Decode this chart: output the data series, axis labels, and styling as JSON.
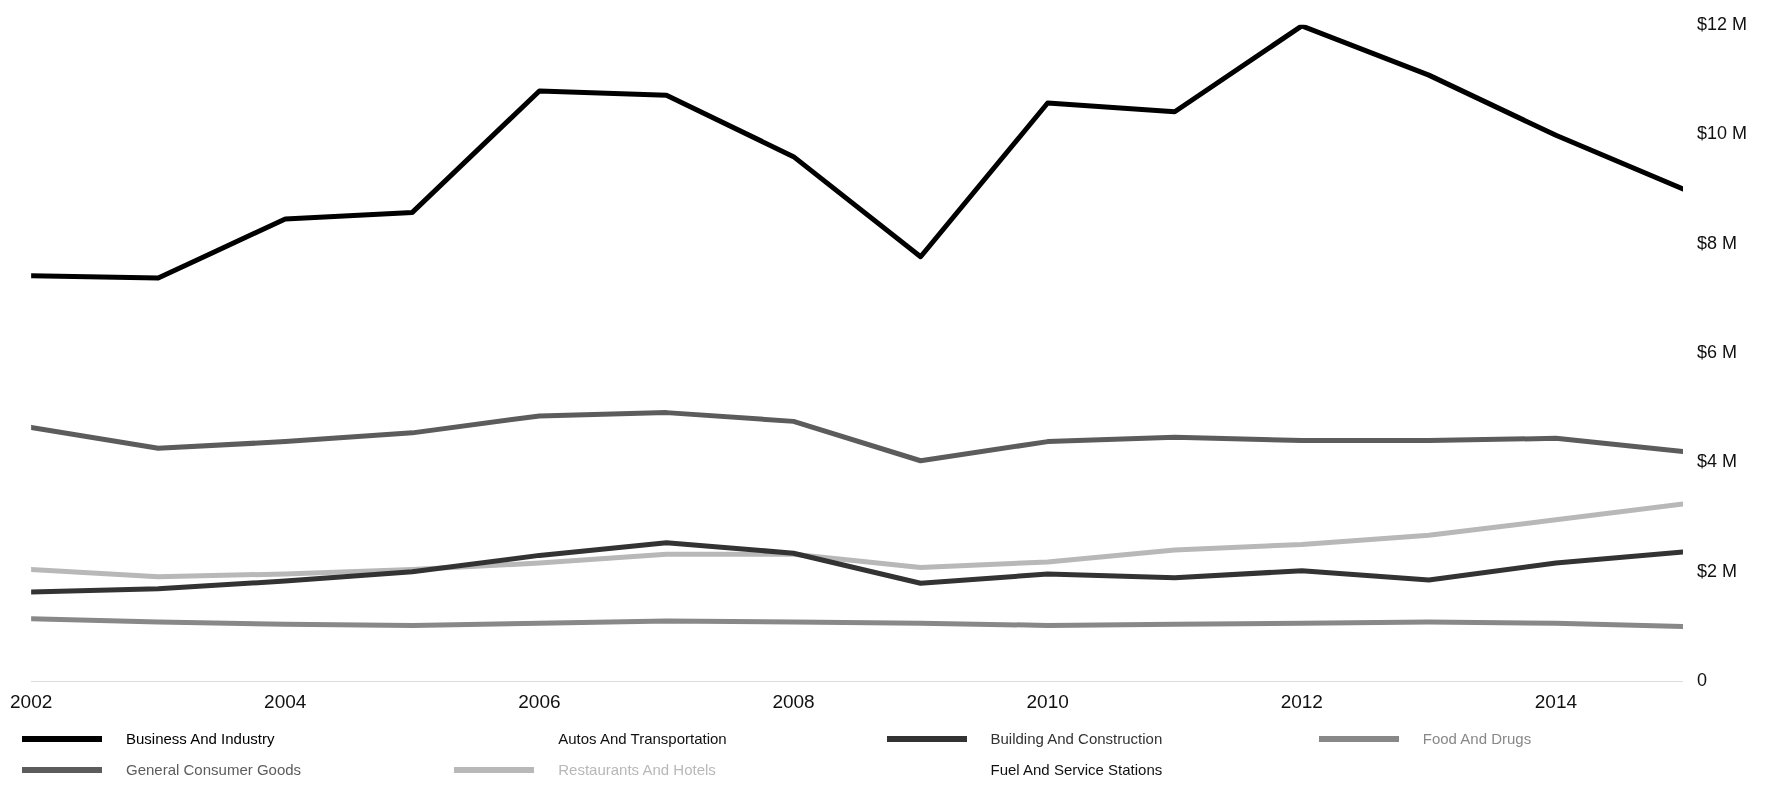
{
  "chart_data": {
    "type": "line",
    "x": [
      2002,
      2003,
      2004,
      2005,
      2006,
      2007,
      2008,
      2009,
      2010,
      2011,
      2012,
      2013,
      2014,
      2015
    ],
    "xlim": [
      2002,
      2015
    ],
    "xticks": [
      2002,
      2004,
      2006,
      2008,
      2010,
      2012,
      2014
    ],
    "ylim": [
      0,
      12
    ],
    "yticks": [
      {
        "value": 0,
        "label": "0"
      },
      {
        "value": 2,
        "label": "$2 M"
      },
      {
        "value": 4,
        "label": "$4 M"
      },
      {
        "value": 6,
        "label": "$6 M"
      },
      {
        "value": 8,
        "label": "$8 M"
      },
      {
        "value": 10,
        "label": "$10 M"
      },
      {
        "value": 12,
        "label": "$12 M"
      }
    ],
    "grid": false,
    "legend": "bottom",
    "marker": "none",
    "line_style": "solid",
    "series": [
      {
        "name": "Business And Industry",
        "color": "#000000",
        "values": [
          7.41,
          7.37,
          8.45,
          8.57,
          10.79,
          10.71,
          9.59,
          7.76,
          10.57,
          10.41,
          11.98,
          11.08,
          9.98,
          9.0
        ]
      },
      {
        "name": "Autos And Transportation",
        "values": [
          null,
          null,
          null,
          null,
          null,
          null,
          null,
          null,
          null,
          null,
          null,
          null,
          null,
          null
        ]
      },
      {
        "name": "Building And Construction",
        "color": "#333333",
        "values": [
          1.63,
          1.69,
          1.83,
          2.0,
          2.3,
          2.53,
          2.34,
          1.79,
          1.96,
          1.89,
          2.02,
          1.85,
          2.16,
          2.36
        ]
      },
      {
        "name": "Food And Drugs",
        "color": "#888888",
        "values": [
          1.14,
          1.08,
          1.04,
          1.02,
          1.06,
          1.1,
          1.08,
          1.06,
          1.02,
          1.04,
          1.06,
          1.08,
          1.06,
          1.0
        ]
      },
      {
        "name": "General Consumer Goods",
        "color": "#5c5c5c",
        "values": [
          4.64,
          4.26,
          4.38,
          4.54,
          4.85,
          4.91,
          4.75,
          4.03,
          4.38,
          4.46,
          4.4,
          4.4,
          4.44,
          4.2
        ]
      },
      {
        "name": "Restaurants And Hotels",
        "color": "#b8b8b8",
        "values": [
          2.04,
          1.91,
          1.96,
          2.04,
          2.16,
          2.32,
          2.32,
          2.08,
          2.18,
          2.4,
          2.5,
          2.67,
          2.95,
          3.24
        ]
      },
      {
        "name": "Fuel And Service Stations",
        "values": [
          null,
          null,
          null,
          null,
          null,
          null,
          null,
          null,
          null,
          null,
          null,
          null,
          null,
          null
        ]
      }
    ]
  }
}
